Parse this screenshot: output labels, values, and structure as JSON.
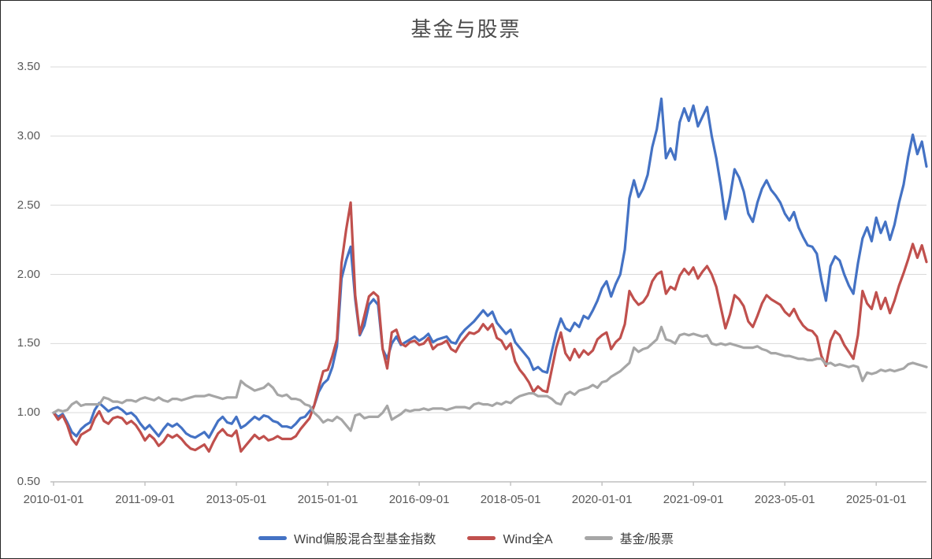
{
  "title": "基金与股票",
  "colors": {
    "blue_series": "#4472C4",
    "red_series": "#C0504D",
    "gray_series": "#A6A6A6",
    "gridline": "#D9D9D9",
    "axis_line": "#BFBFBF",
    "tick_text": "#595959",
    "title_text": "#4A4A4A",
    "frame": "#262626",
    "background": "#FFFFFF"
  },
  "chart_data": {
    "type": "line",
    "title": "基金与股票",
    "xlabel": "",
    "ylabel": "",
    "ylim": [
      0.5,
      3.5
    ],
    "y_tick_step": 0.5,
    "y_ticks": [
      {
        "value": 0.5,
        "label": "0.50"
      },
      {
        "value": 1.0,
        "label": "1.00"
      },
      {
        "value": 1.5,
        "label": "1.50"
      },
      {
        "value": 2.0,
        "label": "2.00"
      },
      {
        "value": 2.5,
        "label": "2.50"
      },
      {
        "value": 3.0,
        "label": "3.00"
      },
      {
        "value": 3.5,
        "label": "3.50"
      }
    ],
    "grid": "horizontal",
    "legend_position": "bottom-center",
    "x_start": "2010-01",
    "x_sampling": "monthly",
    "x_ticks": [
      {
        "index": 0,
        "label": "2010-01-01"
      },
      {
        "index": 20,
        "label": "2011-09-01"
      },
      {
        "index": 40,
        "label": "2013-05-01"
      },
      {
        "index": 60,
        "label": "2015-01-01"
      },
      {
        "index": 80,
        "label": "2016-09-01"
      },
      {
        "index": 100,
        "label": "2018-05-01"
      },
      {
        "index": 120,
        "label": "2020-01-01"
      },
      {
        "index": 140,
        "label": "2021-09-01"
      },
      {
        "index": 160,
        "label": "2023-05-01"
      },
      {
        "index": 180,
        "label": "2025-01-01"
      }
    ],
    "series": [
      {
        "name": "Wind偏股混合型基金指数",
        "color": "#4472C4",
        "values": [
          1.0,
          0.97,
          0.99,
          0.93,
          0.86,
          0.83,
          0.88,
          0.91,
          0.93,
          1.02,
          1.07,
          1.04,
          1.01,
          1.03,
          1.04,
          1.02,
          0.99,
          1.0,
          0.97,
          0.92,
          0.88,
          0.91,
          0.87,
          0.83,
          0.88,
          0.92,
          0.9,
          0.92,
          0.89,
          0.85,
          0.83,
          0.82,
          0.84,
          0.86,
          0.82,
          0.88,
          0.94,
          0.97,
          0.93,
          0.92,
          0.97,
          0.89,
          0.91,
          0.94,
          0.97,
          0.95,
          0.98,
          0.97,
          0.94,
          0.93,
          0.9,
          0.9,
          0.89,
          0.92,
          0.96,
          0.97,
          1.01,
          1.05,
          1.15,
          1.21,
          1.24,
          1.33,
          1.48,
          1.97,
          2.1,
          2.2,
          1.82,
          1.56,
          1.63,
          1.78,
          1.82,
          1.78,
          1.46,
          1.39,
          1.5,
          1.55,
          1.49,
          1.51,
          1.53,
          1.55,
          1.52,
          1.54,
          1.57,
          1.51,
          1.53,
          1.54,
          1.55,
          1.51,
          1.5,
          1.56,
          1.6,
          1.63,
          1.66,
          1.7,
          1.74,
          1.7,
          1.73,
          1.65,
          1.61,
          1.57,
          1.6,
          1.51,
          1.47,
          1.43,
          1.39,
          1.31,
          1.33,
          1.3,
          1.29,
          1.44,
          1.58,
          1.68,
          1.61,
          1.59,
          1.65,
          1.62,
          1.7,
          1.68,
          1.74,
          1.81,
          1.9,
          1.95,
          1.84,
          1.93,
          2.0,
          2.18,
          2.55,
          2.68,
          2.56,
          2.62,
          2.72,
          2.92,
          3.05,
          3.27,
          2.84,
          2.91,
          2.83,
          3.1,
          3.2,
          3.11,
          3.22,
          3.07,
          3.14,
          3.21,
          3.0,
          2.84,
          2.64,
          2.4,
          2.56,
          2.76,
          2.7,
          2.6,
          2.44,
          2.38,
          2.52,
          2.62,
          2.68,
          2.61,
          2.57,
          2.52,
          2.44,
          2.39,
          2.45,
          2.34,
          2.27,
          2.21,
          2.2,
          2.15,
          1.96,
          1.81,
          2.06,
          2.13,
          2.1,
          2.0,
          1.92,
          1.86,
          2.08,
          2.26,
          2.34,
          2.24,
          2.41,
          2.3,
          2.38,
          2.25,
          2.36,
          2.52,
          2.65,
          2.85,
          3.01,
          2.87,
          2.96,
          2.78
        ]
      },
      {
        "name": "Wind全A",
        "color": "#C0504D",
        "values": [
          1.0,
          0.95,
          0.98,
          0.91,
          0.81,
          0.77,
          0.84,
          0.86,
          0.88,
          0.96,
          1.01,
          0.94,
          0.92,
          0.96,
          0.97,
          0.96,
          0.92,
          0.94,
          0.91,
          0.86,
          0.8,
          0.84,
          0.81,
          0.76,
          0.79,
          0.84,
          0.82,
          0.84,
          0.81,
          0.77,
          0.74,
          0.73,
          0.75,
          0.77,
          0.72,
          0.79,
          0.85,
          0.88,
          0.84,
          0.83,
          0.87,
          0.72,
          0.76,
          0.8,
          0.84,
          0.81,
          0.83,
          0.8,
          0.81,
          0.83,
          0.81,
          0.81,
          0.81,
          0.83,
          0.88,
          0.92,
          0.96,
          1.05,
          1.18,
          1.3,
          1.31,
          1.41,
          1.53,
          2.08,
          2.32,
          2.52,
          1.85,
          1.57,
          1.7,
          1.84,
          1.87,
          1.84,
          1.46,
          1.32,
          1.58,
          1.6,
          1.5,
          1.48,
          1.51,
          1.52,
          1.49,
          1.5,
          1.54,
          1.46,
          1.49,
          1.5,
          1.52,
          1.46,
          1.44,
          1.5,
          1.54,
          1.58,
          1.57,
          1.59,
          1.64,
          1.6,
          1.64,
          1.54,
          1.52,
          1.46,
          1.5,
          1.37,
          1.31,
          1.27,
          1.22,
          1.15,
          1.19,
          1.16,
          1.15,
          1.31,
          1.47,
          1.58,
          1.43,
          1.38,
          1.46,
          1.4,
          1.45,
          1.42,
          1.45,
          1.53,
          1.56,
          1.58,
          1.46,
          1.51,
          1.54,
          1.64,
          1.88,
          1.82,
          1.78,
          1.8,
          1.85,
          1.95,
          2.0,
          2.02,
          1.86,
          1.91,
          1.89,
          1.99,
          2.04,
          2.0,
          2.05,
          1.97,
          2.02,
          2.06,
          2.0,
          1.91,
          1.76,
          1.61,
          1.71,
          1.85,
          1.82,
          1.77,
          1.66,
          1.62,
          1.7,
          1.79,
          1.85,
          1.82,
          1.8,
          1.78,
          1.73,
          1.7,
          1.75,
          1.68,
          1.63,
          1.6,
          1.59,
          1.55,
          1.41,
          1.34,
          1.52,
          1.59,
          1.56,
          1.49,
          1.44,
          1.39,
          1.56,
          1.88,
          1.79,
          1.75,
          1.87,
          1.75,
          1.83,
          1.72,
          1.81,
          1.92,
          2.01,
          2.11,
          2.22,
          2.12,
          2.21,
          2.09
        ]
      },
      {
        "name": "基金/股票",
        "color": "#A6A6A6",
        "values": [
          1.0,
          1.02,
          1.01,
          1.02,
          1.06,
          1.08,
          1.05,
          1.06,
          1.06,
          1.06,
          1.06,
          1.11,
          1.1,
          1.08,
          1.08,
          1.07,
          1.09,
          1.09,
          1.08,
          1.1,
          1.11,
          1.1,
          1.09,
          1.11,
          1.09,
          1.08,
          1.1,
          1.1,
          1.09,
          1.1,
          1.11,
          1.12,
          1.12,
          1.12,
          1.13,
          1.12,
          1.11,
          1.1,
          1.11,
          1.11,
          1.11,
          1.23,
          1.2,
          1.18,
          1.16,
          1.17,
          1.18,
          1.21,
          1.18,
          1.13,
          1.12,
          1.13,
          1.1,
          1.1,
          1.09,
          1.06,
          1.05,
          1.0,
          0.97,
          0.93,
          0.95,
          0.94,
          0.97,
          0.95,
          0.91,
          0.87,
          0.98,
          0.99,
          0.96,
          0.97,
          0.97,
          0.97,
          1.0,
          1.05,
          0.95,
          0.97,
          0.99,
          1.02,
          1.01,
          1.02,
          1.02,
          1.03,
          1.02,
          1.03,
          1.03,
          1.03,
          1.02,
          1.03,
          1.04,
          1.04,
          1.04,
          1.03,
          1.06,
          1.07,
          1.06,
          1.06,
          1.05,
          1.07,
          1.06,
          1.08,
          1.07,
          1.1,
          1.12,
          1.13,
          1.14,
          1.14,
          1.12,
          1.12,
          1.12,
          1.1,
          1.07,
          1.06,
          1.13,
          1.15,
          1.13,
          1.16,
          1.17,
          1.18,
          1.2,
          1.18,
          1.22,
          1.23,
          1.26,
          1.28,
          1.3,
          1.33,
          1.36,
          1.47,
          1.44,
          1.46,
          1.47,
          1.5,
          1.53,
          1.62,
          1.53,
          1.52,
          1.5,
          1.56,
          1.57,
          1.56,
          1.57,
          1.56,
          1.55,
          1.56,
          1.5,
          1.49,
          1.5,
          1.49,
          1.5,
          1.49,
          1.48,
          1.47,
          1.47,
          1.47,
          1.48,
          1.46,
          1.45,
          1.43,
          1.43,
          1.42,
          1.41,
          1.41,
          1.4,
          1.39,
          1.39,
          1.38,
          1.38,
          1.39,
          1.39,
          1.35,
          1.36,
          1.34,
          1.35,
          1.34,
          1.33,
          1.34,
          1.33,
          1.23,
          1.29,
          1.28,
          1.29,
          1.31,
          1.3,
          1.31,
          1.3,
          1.31,
          1.32,
          1.35,
          1.36,
          1.35,
          1.34,
          1.33
        ]
      }
    ]
  }
}
